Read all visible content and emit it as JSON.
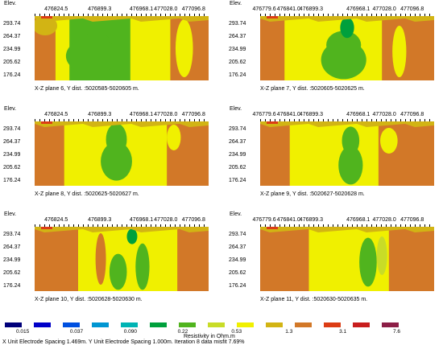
{
  "panels": [
    {
      "caption": "X-Z plane 6, Y dist. :5020585-5020605 m.",
      "x_ticks": [
        "476824.5",
        "476899.3",
        "476968.1",
        "477028.0",
        "477096.8"
      ],
      "x_tick_frac": [
        0.13,
        0.38,
        0.62,
        0.76,
        0.92
      ]
    },
    {
      "caption": "X-Z plane 7, Y dist. :5020605-5020625 m.",
      "x_ticks": [
        "476779.6",
        "476841.0",
        "476899.3",
        "476968.1",
        "477028.0",
        "477096.8"
      ],
      "x_tick_frac": [
        0.03,
        0.17,
        0.3,
        0.57,
        0.72,
        0.88
      ]
    },
    {
      "caption": "X-Z plane 8, Y dist. :5020625-5020627 m.",
      "x_ticks": [
        "476824.5",
        "476899.3",
        "476968.1",
        "477028.0",
        "477096.8"
      ],
      "x_tick_frac": [
        0.13,
        0.38,
        0.62,
        0.76,
        0.92
      ]
    },
    {
      "caption": "X-Z plane 9, Y dist. :5020627-5020628 m.",
      "x_ticks": [
        "476779.6",
        "476841.0",
        "476899.3",
        "476968.1",
        "477028.0",
        "477096.8"
      ],
      "x_tick_frac": [
        0.03,
        0.17,
        0.3,
        0.57,
        0.72,
        0.88
      ]
    },
    {
      "caption": "X-Z plane 10, Y dist. :5020628-5020630 m.",
      "x_ticks": [
        "476824.5",
        "476899.3",
        "476968.1",
        "477028.0",
        "477096.8"
      ],
      "x_tick_frac": [
        0.13,
        0.38,
        0.62,
        0.76,
        0.92
      ]
    },
    {
      "caption": "X-Z plane 11, Y dist. :5020630-5020635 m.",
      "x_ticks": [
        "476779.6",
        "476841.0",
        "476899.3",
        "476968.1",
        "477028.0",
        "477096.8"
      ],
      "x_tick_frac": [
        0.03,
        0.17,
        0.3,
        0.57,
        0.72,
        0.88
      ]
    }
  ],
  "axis": {
    "elev_label": "Elev.",
    "y_ticks": [
      "293.74",
      "264.37",
      "234.99",
      "205.62",
      "176.24"
    ],
    "y_tick_frac": [
      0.12,
      0.32,
      0.52,
      0.72,
      0.92
    ]
  },
  "legend": {
    "title": "Resistivity in Ohm.m",
    "colors": [
      "#00007a",
      "#0000c8",
      "#0050e0",
      "#0096d2",
      "#00b4b4",
      "#00a03c",
      "#50b41e",
      "#c8dc28",
      "#f0f000",
      "#d2b414",
      "#d27828",
      "#dc3c14",
      "#c81e1e",
      "#8c1e46"
    ],
    "values": [
      "0.015",
      "0.037",
      "0.090",
      "0.22",
      "0.53",
      "1.3",
      "3.1",
      "7.6"
    ]
  },
  "footer": "X Unit Electrode Spacing 1.469m.   Y Unit Electrode Spacing 1.000m.   Iteration 8 data misfit 7.69%"
}
